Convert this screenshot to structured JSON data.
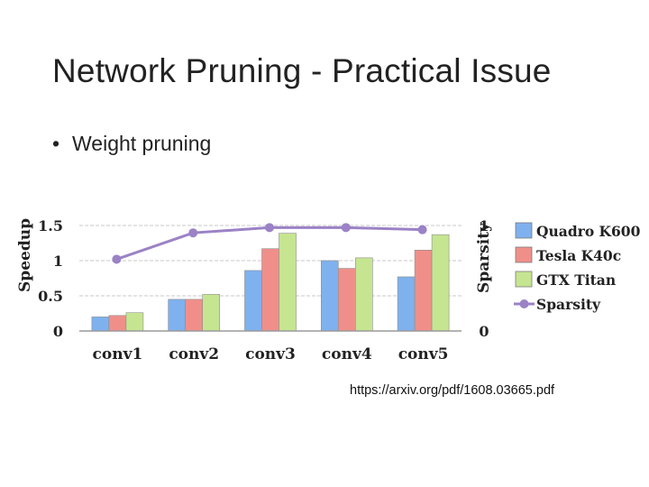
{
  "slide": {
    "title": "Network Pruning - Practical Issue",
    "bullet_char": "•",
    "bullet_text": "Weight pruning",
    "source": "https://arxiv.org/pdf/1608.03665.pdf"
  },
  "chart_data": {
    "type": "bar",
    "categories": [
      "conv1",
      "conv2",
      "conv3",
      "conv4",
      "conv5"
    ],
    "ylabel": "Speedup",
    "y2label": "Sparsity",
    "ylim": [
      0,
      1.5
    ],
    "y2lim": [
      0,
      1
    ],
    "yticks": [
      "0",
      "0.5",
      "1",
      "1.5"
    ],
    "y2ticks": [
      "0",
      "1"
    ],
    "grid": true,
    "legend_position": "right",
    "series": [
      {
        "name": "Quadro K600",
        "color": "#7fb1ee",
        "values": [
          0.2,
          0.45,
          0.86,
          1.0,
          0.77
        ]
      },
      {
        "name": "Tesla K40c",
        "color": "#f08f8a",
        "values": [
          0.22,
          0.45,
          1.17,
          0.89,
          1.15
        ]
      },
      {
        "name": "GTX Titan",
        "color": "#c6e591",
        "values": [
          0.26,
          0.52,
          1.39,
          1.04,
          1.37
        ]
      }
    ],
    "line_series": {
      "name": "Sparsity",
      "color": "#9b82c6",
      "values": [
        0.68,
        0.93,
        0.98,
        0.98,
        0.96
      ]
    }
  }
}
